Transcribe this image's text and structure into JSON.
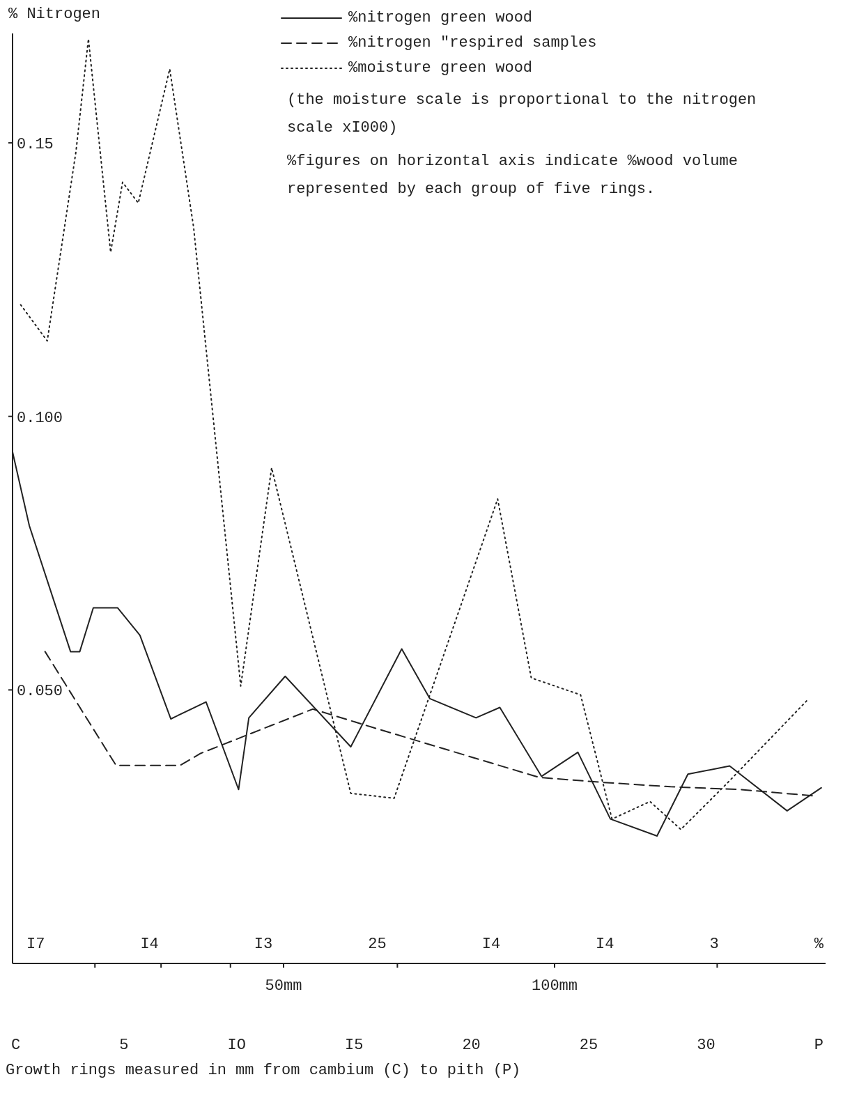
{
  "chart_data": {
    "type": "line",
    "ylabel": "% Nitrogen",
    "xlabel": "Growth rings measured in mm from cambium (C) to pith (P)",
    "xlim": [
      0,
      150
    ],
    "ylim": [
      0,
      0.17
    ],
    "xticks": [
      {
        "value": 15.2,
        "label": null
      },
      {
        "value": 27.4,
        "label": null
      },
      {
        "value": 40.2,
        "label": null
      },
      {
        "value": 50,
        "label": "50mm"
      },
      {
        "value": 71,
        "label": null
      },
      {
        "value": 100,
        "label": "100mm"
      },
      {
        "value": 130,
        "label": null
      }
    ],
    "yticks": [
      {
        "value": 0.05,
        "label": "0.050"
      },
      {
        "value": 0.1,
        "label": "0.100"
      },
      0.15
    ],
    "legend": "top right",
    "grid": false,
    "marker": "none",
    "series": [
      {
        "name": "%nitrogen green wood",
        "color": "#222222",
        "line_style": "solid",
        "x": [
          0,
          3.1,
          10.7,
          12.4,
          14.9,
          19.4,
          23.5,
          29.2,
          35.7,
          41.7,
          43.6,
          50.3,
          62.4,
          71.8,
          77,
          85.5,
          89.9,
          97.6,
          104.3,
          110.3,
          118.9,
          124.6,
          132.3,
          142.9,
          149.2
        ],
        "values": [
          0.0935,
          0.08,
          0.057,
          0.057,
          0.065,
          0.065,
          0.06,
          0.0447,
          0.0478,
          0.0318,
          0.0449,
          0.0525,
          0.0396,
          0.0575,
          0.0484,
          0.0449,
          0.0468,
          0.0342,
          0.0386,
          0.0264,
          0.0233,
          0.0346,
          0.0361,
          0.0279,
          0.0321
        ]
      },
      {
        "name": "%nitrogen \"respired samples",
        "color": "#222222",
        "line_style": "dashed",
        "x": [
          6,
          19.1,
          30.9,
          34.7,
          55.4,
          66.6,
          97.2,
          108.9,
          121.4,
          134.2,
          148.2
        ],
        "values": [
          0.057,
          0.0362,
          0.0362,
          0.0384,
          0.0465,
          0.0431,
          0.034,
          0.0331,
          0.0323,
          0.0318,
          0.0306
        ]
      },
      {
        "name": "%moisture green wood",
        "color": "#222222",
        "line_style": "dotted",
        "x": [
          1.5,
          6.4,
          11.7,
          14,
          18.1,
          20.3,
          23.2,
          29,
          33.4,
          42.1,
          47.8,
          62.4,
          70.4,
          89.5,
          95.7,
          104.8,
          110.6,
          117.6,
          123.3,
          131.6,
          146.9
        ],
        "values": [
          0.1204,
          0.1138,
          0.1484,
          0.169,
          0.13,
          0.1428,
          0.139,
          0.1635,
          0.1346,
          0.0507,
          0.0906,
          0.0311,
          0.0302,
          0.0849,
          0.0522,
          0.0491,
          0.0264,
          0.0296,
          0.0245,
          0.0327,
          0.0484
        ]
      }
    ],
    "annotations": [
      "(the moisture scale is proportional to the nitrogen scale xI000)",
      "%figures on horizontal axis indicate %wood volume represented by each group of five rings.",
      "I7 I4 I3 25 I4 I4 3 %",
      "C 5 IO I5 20 25 30 P"
    ]
  }
}
